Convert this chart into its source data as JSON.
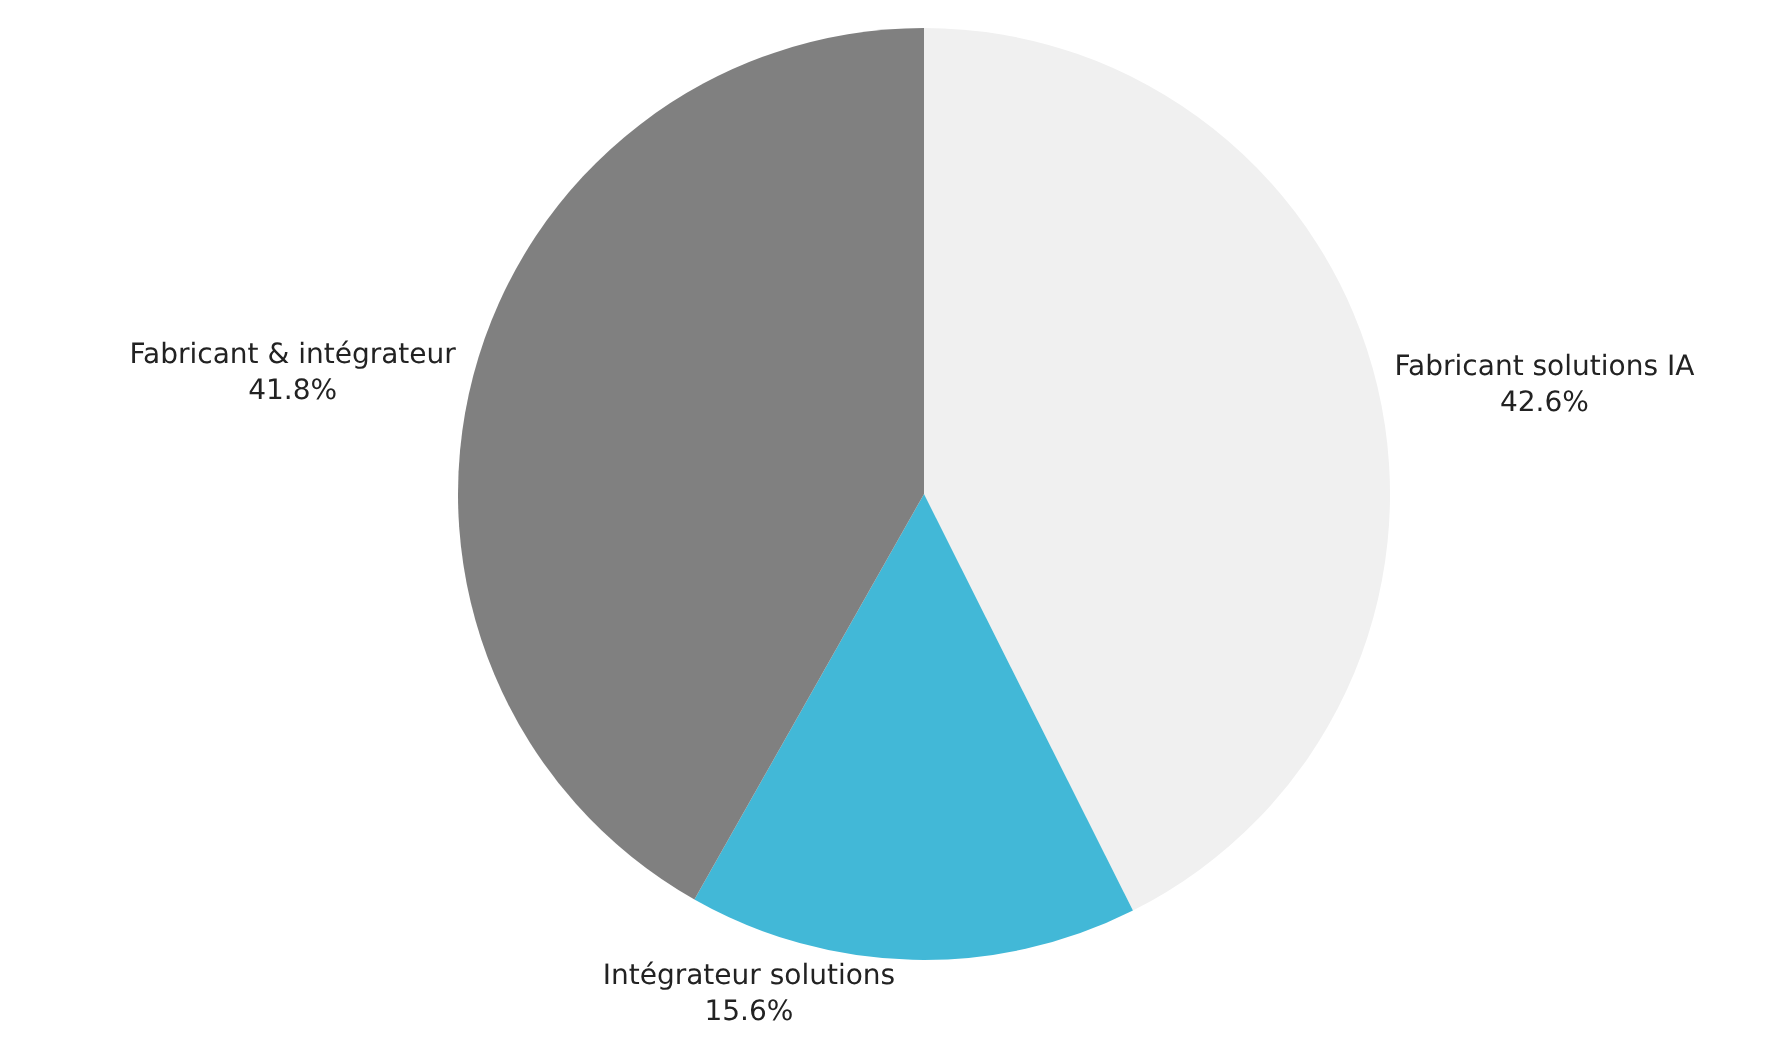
{
  "chart_data": {
    "type": "pie",
    "categories": [
      "Fabricant solutions IA",
      "Intégrateur solutions",
      "Fabricant & intégrateur"
    ],
    "values": [
      42.6,
      15.6,
      41.8
    ],
    "value_labels": [
      "42.6%",
      "15.6%",
      "41.8%"
    ],
    "colors": [
      "#f0f0f0",
      "#42b8d7",
      "#808080"
    ],
    "legend": false
  }
}
